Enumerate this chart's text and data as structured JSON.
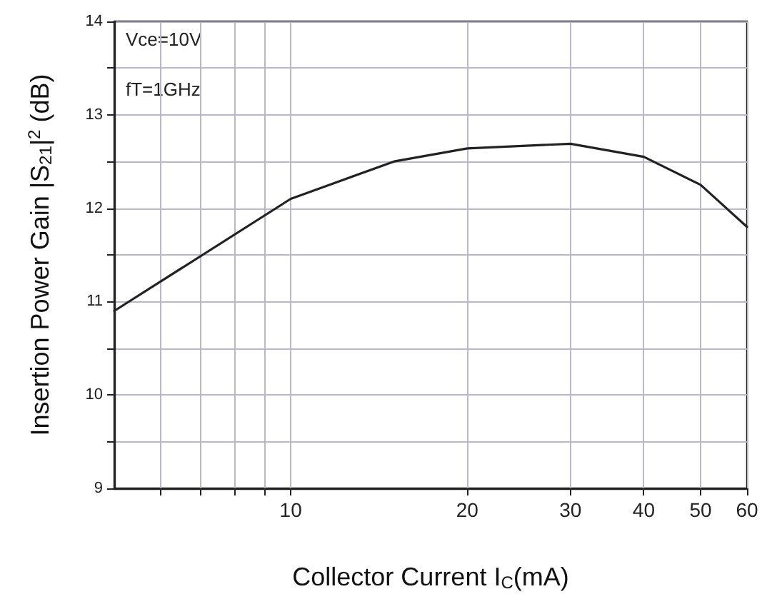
{
  "chart_data": {
    "type": "line",
    "xlabel": "Collector Current I$_{C}$(mA)",
    "ylabel": "Insertion Power Gain |S$_{21}$|$^{2}$ (dB)",
    "annotations": [
      "Vce=10V",
      "fT=1GHz"
    ],
    "x": [
      5,
      10,
      15,
      20,
      30,
      40,
      50,
      60
    ],
    "series": [
      {
        "color": "#222222",
        "values": [
          10.9,
          12.1,
          12.5,
          12.64,
          12.69,
          12.55,
          12.25,
          11.8
        ]
      }
    ],
    "log": "x",
    "xlim": [
      5,
      60
    ],
    "xticks": [
      {
        "value": 6,
        "label": null
      },
      {
        "value": 7,
        "label": null
      },
      {
        "value": 8,
        "label": null
      },
      {
        "value": 9,
        "label": null
      },
      10,
      20,
      30,
      40,
      50,
      60
    ],
    "ylim": [
      9,
      14
    ],
    "yticks": [
      9,
      {
        "value": 9.5,
        "label": null
      },
      10,
      {
        "value": 10.5,
        "label": null
      },
      11,
      {
        "value": 11.5,
        "label": null
      },
      12,
      {
        "value": 12.5,
        "label": null
      },
      13,
      {
        "value": 13.5,
        "label": null
      },
      14
    ],
    "grid": true,
    "marker": "none",
    "line_style": "solid"
  }
}
